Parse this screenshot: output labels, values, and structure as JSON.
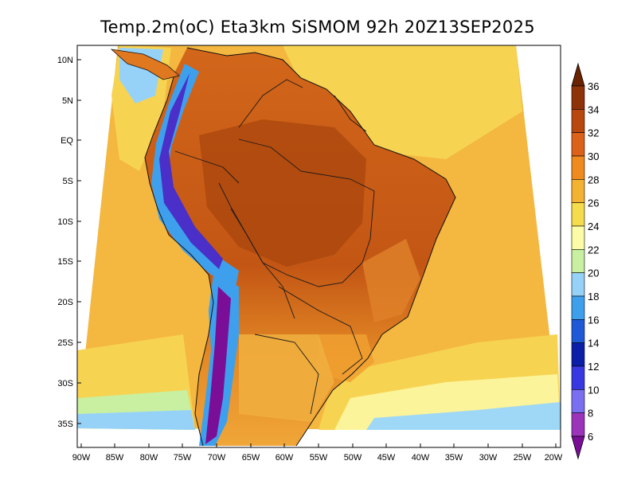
{
  "title": "Temp.2m(oC) Eta3km SiSMOM 92h 20Z13SEP2025",
  "variable": "Temp.2m(oC)",
  "model": "Eta3km SiSMOM",
  "forecast_hour": "92h",
  "valid_time": "20Z13SEP2025",
  "lat_labels": [
    "10N",
    "5N",
    "EQ",
    "5S",
    "10S",
    "15S",
    "20S",
    "25S",
    "30S",
    "35S"
  ],
  "lon_labels": [
    "90W",
    "85W",
    "80W",
    "75W",
    "70W",
    "65W",
    "60W",
    "55W",
    "50W",
    "45W",
    "40W",
    "35W",
    "30W",
    "25W",
    "20W"
  ],
  "colorbar": {
    "labels": [
      "6",
      "8",
      "10",
      "12",
      "14",
      "16",
      "18",
      "20",
      "22",
      "24",
      "26",
      "28",
      "30",
      "32",
      "34",
      "36"
    ],
    "colors": [
      "#7a0e96",
      "#9b34b9",
      "#7a6ff0",
      "#3838e2",
      "#0a1ea8",
      "#1e5ad8",
      "#3ea0ec",
      "#96d2f8",
      "#c8f0a0",
      "#fcfca6",
      "#f5dc4c",
      "#f4b232",
      "#ef8a1e",
      "#dc621a",
      "#b9480e",
      "#8e3208",
      "#6a2200"
    ]
  },
  "palette": {
    "ocean_warm": "#f4b740",
    "ocean_mild": "#f7d352",
    "ocean_cool": "#fcf49a",
    "land_hot": "#c95a14",
    "land_warm": "#e07820",
    "andes_cold": "#4a2fc8"
  }
}
